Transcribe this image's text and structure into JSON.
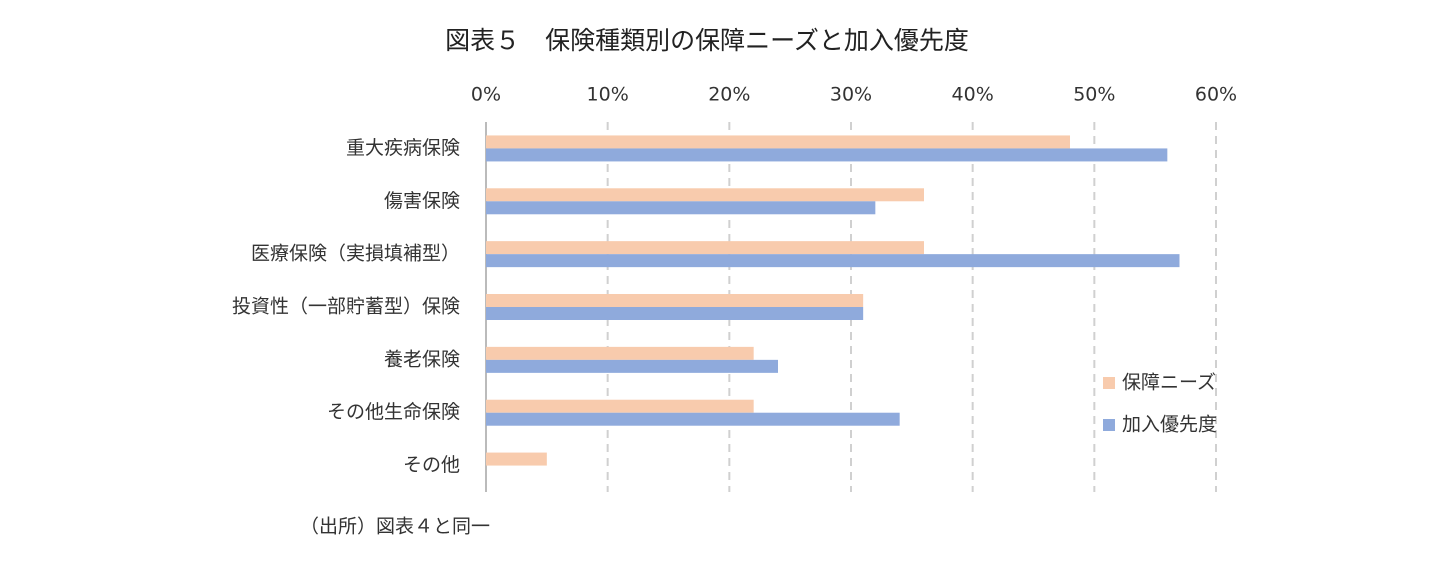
{
  "chart_data": {
    "type": "barh",
    "title": "図表５　保険種類別の保障ニーズと加入優先度",
    "categories": [
      "重大疾病保険",
      "傷害保険",
      "医療保険（実損填補型）",
      "投資性（一部貯蓄型）保険",
      "養老保険",
      "その他生命保険",
      "その他"
    ],
    "series": [
      {
        "name": "保障ニーズ",
        "color": "#f8cbad",
        "values": [
          48,
          36,
          36,
          31,
          22,
          22,
          5
        ]
      },
      {
        "name": "加入優先度",
        "color": "#8faadc",
        "values": [
          56,
          32,
          57,
          31,
          24,
          34,
          null
        ]
      }
    ],
    "xlim": [
      0,
      60
    ],
    "xticks": [
      {
        "value": 0,
        "label": "0%"
      },
      {
        "value": 10,
        "label": "10%"
      },
      {
        "value": 20,
        "label": "20%"
      },
      {
        "value": 30,
        "label": "30%"
      },
      {
        "value": 40,
        "label": "40%"
      },
      {
        "value": 50,
        "label": "50%"
      },
      {
        "value": 60,
        "label": "60%"
      }
    ],
    "grid": true,
    "legend": "right",
    "source": "（出所）図表４と同一"
  }
}
